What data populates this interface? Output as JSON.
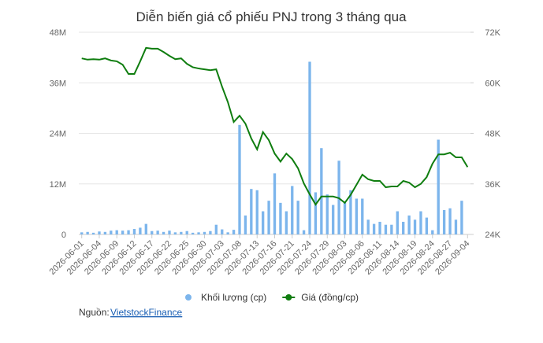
{
  "chart_data": {
    "type": "combo",
    "title": "Diễn biến giá cổ phiếu PNJ trong 3 tháng qua",
    "categories": [
      "2026-06-01",
      null,
      null,
      "2026-06-04",
      null,
      null,
      "2026-06-09",
      null,
      null,
      "2026-06-12",
      null,
      null,
      "2026-06-17",
      null,
      null,
      "2026-06-22",
      null,
      null,
      "2026-06-25",
      null,
      null,
      "2026-06-30",
      null,
      null,
      "2026-07-03",
      null,
      null,
      "2026-07-08",
      null,
      null,
      "2026-07-13",
      null,
      null,
      "2026-07-16",
      null,
      null,
      "2026-07-21",
      null,
      null,
      "2026-07-24",
      null,
      null,
      "2026-07-29",
      null,
      null,
      "2026-08-03",
      null,
      null,
      "2026-08-06",
      null,
      null,
      "2026-08-11",
      null,
      null,
      "2026-08-14",
      null,
      null,
      "2026-08-19",
      null,
      null,
      "2026-08-24",
      null,
      null,
      "2026-08-27",
      null,
      null,
      "2026-09-04"
    ],
    "series": [
      {
        "name": "Khối lượng (cp)",
        "type": "bar",
        "color": "#7cb5ec",
        "values": [
          500000,
          600000,
          400000,
          700000,
          600000,
          900000,
          1000000,
          900000,
          1000000,
          1300000,
          1600000,
          2500000,
          800000,
          900000,
          600000,
          900000,
          500000,
          600000,
          800000,
          400000,
          500000,
          600000,
          800000,
          2300000,
          1200000,
          500000,
          1100000,
          26000000,
          4500000,
          10800000,
          10500000,
          5500000,
          8000000,
          14500000,
          7500000,
          5500000,
          11500000,
          8000000,
          1000000,
          41000000,
          10000000,
          20500000,
          9500000,
          7000000,
          17500000,
          7500000,
          10500000,
          8500000,
          8500000,
          3500000,
          2500000,
          3000000,
          2300000,
          2300000,
          5500000,
          3000000,
          4500000,
          3500000,
          5500000,
          4000000,
          1000000,
          22500000,
          5800000,
          6200000,
          3500000,
          8000000,
          0
        ]
      },
      {
        "name": "Giá (đồng/cp)",
        "type": "line",
        "axis": "y2",
        "color": "#0f7d0f",
        "values": [
          65800,
          65500,
          65600,
          65500,
          65800,
          65300,
          65100,
          64300,
          62100,
          62100,
          65100,
          68300,
          68100,
          68100,
          67300,
          66400,
          65600,
          65800,
          64500,
          63700,
          63400,
          63200,
          63000,
          63200,
          59100,
          55400,
          50700,
          52200,
          50300,
          46800,
          44200,
          48300,
          46400,
          43200,
          41300,
          43200,
          41900,
          39700,
          36100,
          33500,
          31100,
          33000,
          33000,
          33000,
          32600,
          31500,
          33400,
          35800,
          38200,
          37100,
          36700,
          36700,
          35200,
          35400,
          35400,
          36700,
          36300,
          35200,
          36000,
          37600,
          40800,
          43000,
          43000,
          43400,
          42300,
          42300,
          40000
        ]
      }
    ],
    "ylim": [
      0,
      48000000
    ],
    "yticks": [
      {
        "value": 0,
        "label": "0"
      },
      {
        "value": 12000000,
        "label": "12M"
      },
      {
        "value": 24000000,
        "label": "24M"
      },
      {
        "value": 36000000,
        "label": "36M"
      },
      {
        "value": 48000000,
        "label": "48M"
      }
    ],
    "y2lim": [
      24000,
      72000
    ],
    "y2ticks": [
      {
        "value": 24000,
        "label": "24K"
      },
      {
        "value": 36000,
        "label": "36K"
      },
      {
        "value": 48000,
        "label": "48K"
      },
      {
        "value": 60000,
        "label": "60K"
      },
      {
        "value": 72000,
        "label": "72K"
      }
    ],
    "grid": true,
    "legend": "bottom",
    "source_label": "Nguồn:",
    "source_link": "VietstockFinance"
  }
}
